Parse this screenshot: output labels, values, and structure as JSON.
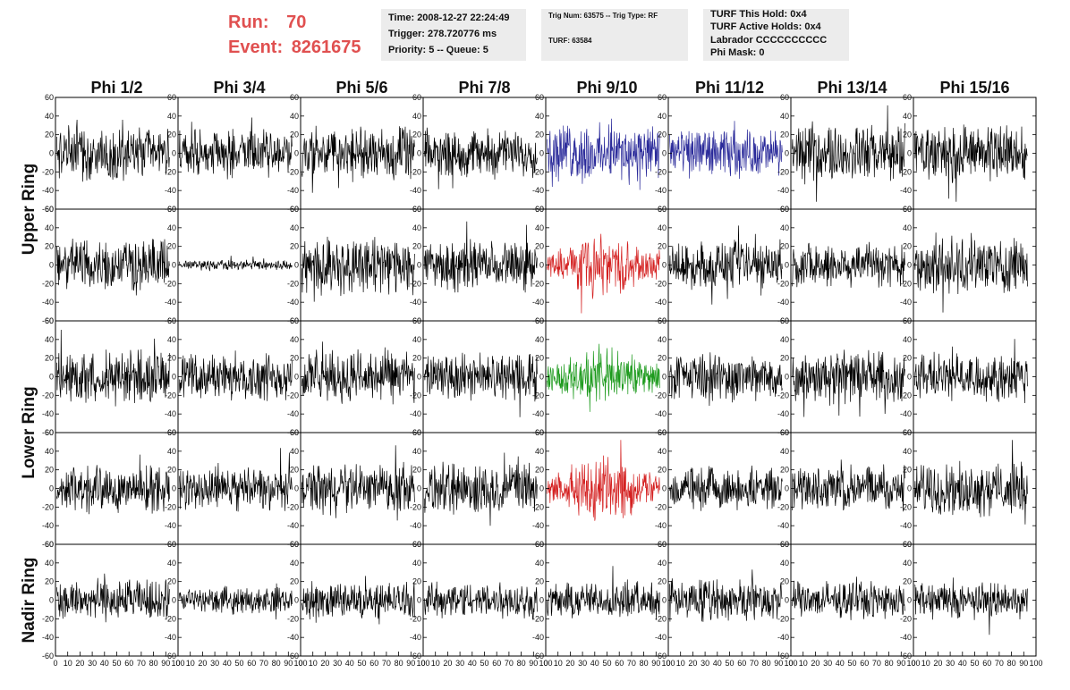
{
  "header": {
    "run_label": "Run:",
    "run_value": "70",
    "event_label": "Event:",
    "event_value": "8261675"
  },
  "info_panel_1": {
    "time": "Time: 2008-12-27 22:24:49",
    "trigger": "Trigger: 278.720776 ms",
    "priority": "Priority: 5 -- Queue: 5"
  },
  "info_panel_2": {
    "trig": "Trig Num: 63575 -- Trig Type: RF",
    "turf": "TURF: 63584"
  },
  "info_panel_3": {
    "this_hold": "TURF This Hold: 0x4",
    "active_holds": "TURF Active Holds: 0x4",
    "labrador": "Labrador CCCCCCCCCC",
    "phi_mask": "Phi Mask: 0"
  },
  "chart_data": {
    "type": "line",
    "title": "",
    "columns": [
      "Phi 1/2",
      "Phi 3/4",
      "Phi 5/6",
      "Phi 7/8",
      "Phi 9/10",
      "Phi 11/12",
      "Phi 13/14",
      "Phi 15/16"
    ],
    "rows": [
      "Upper Ring",
      "",
      "Lower Ring",
      "",
      "Nadir Ring"
    ],
    "row_labels": [
      {
        "text": "Upper Ring",
        "spans_rows": [
          0,
          1
        ]
      },
      {
        "text": "Lower Ring",
        "spans_rows": [
          2,
          3
        ]
      },
      {
        "text": "Nadir Ring",
        "spans_rows": [
          4
        ]
      }
    ],
    "xlim": [
      0,
      100
    ],
    "ylim": [
      -60,
      60
    ],
    "x_ticks": [
      0,
      10,
      20,
      30,
      40,
      50,
      60,
      70,
      80,
      90,
      100
    ],
    "x_tick_labels": [
      "0",
      "10",
      "20",
      "30",
      "40",
      "50",
      "60",
      "70",
      "80",
      "90",
      "100"
    ],
    "y_ticks": [
      60,
      40,
      20,
      0,
      -20,
      -40,
      -60
    ],
    "y_tick_labels": [
      "60",
      "40",
      "20",
      "0",
      "-20",
      "-40",
      "-60"
    ],
    "samples_per_trace": 256,
    "default_color": "#000000",
    "highlight_colors": {
      "blue": "#2a2a9a",
      "red": "#d42020",
      "green": "#1c9a1c"
    },
    "panels": [
      {
        "row": 0,
        "col": 0,
        "amplitude": 20,
        "color": "#000000"
      },
      {
        "row": 0,
        "col": 1,
        "amplitude": 18,
        "color": "#000000"
      },
      {
        "row": 0,
        "col": 2,
        "amplitude": 20,
        "color": "#000000"
      },
      {
        "row": 0,
        "col": 3,
        "amplitude": 18,
        "color": "#000000"
      },
      {
        "row": 0,
        "col": 4,
        "amplitude": 22,
        "color": "#2a2a9a"
      },
      {
        "row": 0,
        "col": 5,
        "amplitude": 18,
        "color": "#2a2a9a"
      },
      {
        "row": 0,
        "col": 6,
        "amplitude": 22,
        "color": "#000000"
      },
      {
        "row": 0,
        "col": 7,
        "amplitude": 22,
        "color": "#000000"
      },
      {
        "row": 1,
        "col": 0,
        "amplitude": 20,
        "color": "#000000"
      },
      {
        "row": 1,
        "col": 1,
        "amplitude": 4,
        "color": "#000000"
      },
      {
        "row": 1,
        "col": 2,
        "amplitude": 22,
        "color": "#000000"
      },
      {
        "row": 1,
        "col": 3,
        "amplitude": 18,
        "color": "#000000"
      },
      {
        "row": 1,
        "col": 4,
        "amplitude": 24,
        "color": "#d42020"
      },
      {
        "row": 1,
        "col": 5,
        "amplitude": 18,
        "color": "#000000"
      },
      {
        "row": 1,
        "col": 6,
        "amplitude": 18,
        "color": "#000000"
      },
      {
        "row": 1,
        "col": 7,
        "amplitude": 22,
        "color": "#000000"
      },
      {
        "row": 2,
        "col": 0,
        "amplitude": 20,
        "color": "#000000"
      },
      {
        "row": 2,
        "col": 1,
        "amplitude": 18,
        "color": "#000000"
      },
      {
        "row": 2,
        "col": 2,
        "amplitude": 20,
        "color": "#000000"
      },
      {
        "row": 2,
        "col": 3,
        "amplitude": 18,
        "color": "#000000"
      },
      {
        "row": 2,
        "col": 4,
        "amplitude": 24,
        "color": "#1c9a1c"
      },
      {
        "row": 2,
        "col": 5,
        "amplitude": 18,
        "color": "#000000"
      },
      {
        "row": 2,
        "col": 6,
        "amplitude": 20,
        "color": "#000000"
      },
      {
        "row": 2,
        "col": 7,
        "amplitude": 18,
        "color": "#000000"
      },
      {
        "row": 3,
        "col": 0,
        "amplitude": 18,
        "color": "#000000"
      },
      {
        "row": 3,
        "col": 1,
        "amplitude": 16,
        "color": "#000000"
      },
      {
        "row": 3,
        "col": 2,
        "amplitude": 18,
        "color": "#000000"
      },
      {
        "row": 3,
        "col": 3,
        "amplitude": 20,
        "color": "#000000"
      },
      {
        "row": 3,
        "col": 4,
        "amplitude": 26,
        "color": "#d42020"
      },
      {
        "row": 3,
        "col": 5,
        "amplitude": 16,
        "color": "#000000"
      },
      {
        "row": 3,
        "col": 6,
        "amplitude": 18,
        "color": "#000000"
      },
      {
        "row": 3,
        "col": 7,
        "amplitude": 20,
        "color": "#000000"
      },
      {
        "row": 4,
        "col": 0,
        "amplitude": 16,
        "color": "#000000"
      },
      {
        "row": 4,
        "col": 1,
        "amplitude": 10,
        "color": "#000000"
      },
      {
        "row": 4,
        "col": 2,
        "amplitude": 14,
        "color": "#000000"
      },
      {
        "row": 4,
        "col": 3,
        "amplitude": 14,
        "color": "#000000"
      },
      {
        "row": 4,
        "col": 4,
        "amplitude": 14,
        "color": "#000000"
      },
      {
        "row": 4,
        "col": 5,
        "amplitude": 16,
        "color": "#000000"
      },
      {
        "row": 4,
        "col": 6,
        "amplitude": 14,
        "color": "#000000"
      },
      {
        "row": 4,
        "col": 7,
        "amplitude": 14,
        "color": "#000000"
      }
    ]
  }
}
